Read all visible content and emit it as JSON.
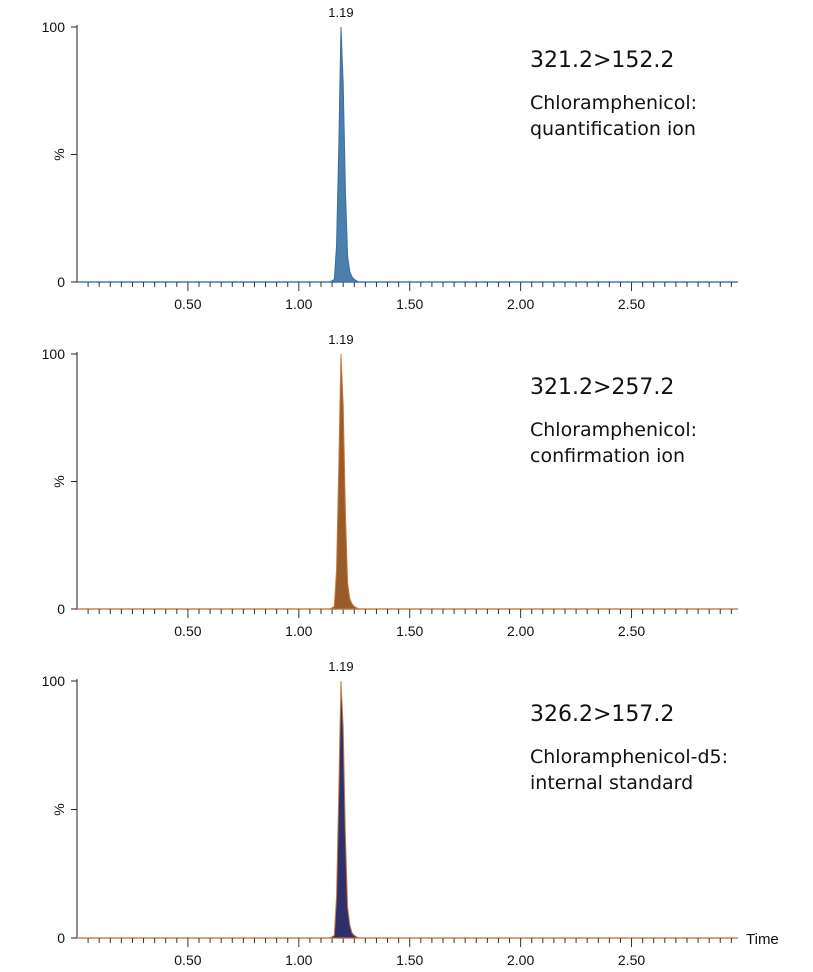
{
  "chart_data": [
    {
      "type": "area",
      "transition": "321.2>152.2",
      "annotation_lines": [
        "Chloramphenicol:",
        "quantification ion"
      ],
      "peak_label": "1.19",
      "ylabel": "%",
      "xlabel": "",
      "xlim": [
        0,
        2.98
      ],
      "ylim": [
        0,
        100
      ],
      "x_ticks": [
        "0.50",
        "1.00",
        "1.50",
        "2.00",
        "2.50"
      ],
      "y_ticks": [
        "0",
        "100"
      ],
      "fill_color": "#4a7fae",
      "line_color": "#3a6e9e",
      "baseline_color": "#4a7fae",
      "series": [
        {
          "x": [
            1.14,
            1.16,
            1.17,
            1.18,
            1.19,
            1.2,
            1.21,
            1.22,
            1.23,
            1.24,
            1.25,
            1.27
          ],
          "y": [
            0,
            1,
            14,
            52,
            100,
            78,
            36,
            10,
            4,
            2,
            1,
            0
          ]
        }
      ]
    },
    {
      "type": "area",
      "transition": "321.2>257.2",
      "annotation_lines": [
        "Chloramphenicol:",
        "confirmation ion"
      ],
      "peak_label": "1.19",
      "ylabel": "%",
      "xlabel": "",
      "xlim": [
        0,
        2.98
      ],
      "ylim": [
        0,
        100
      ],
      "x_ticks": [
        "0.50",
        "1.00",
        "1.50",
        "2.00",
        "2.50"
      ],
      "y_ticks": [
        "0",
        "100"
      ],
      "fill_color": "#9a5a2a",
      "line_color": "#c87a3a",
      "baseline_color": "#d08050",
      "series": [
        {
          "x": [
            1.14,
            1.16,
            1.17,
            1.18,
            1.19,
            1.2,
            1.21,
            1.22,
            1.23,
            1.24,
            1.25,
            1.27
          ],
          "y": [
            0,
            1,
            15,
            55,
            100,
            80,
            38,
            10,
            4,
            2,
            1,
            0
          ]
        }
      ]
    },
    {
      "type": "area",
      "transition": "326.2>157.2",
      "annotation_lines": [
        "Chloramphenicol-d5:",
        "internal standard"
      ],
      "peak_label": "1.19",
      "ylabel": "%",
      "xlabel": "Time",
      "xlim": [
        0,
        2.98
      ],
      "ylim": [
        0,
        100
      ],
      "x_ticks": [
        "0.50",
        "1.00",
        "1.50",
        "2.00",
        "2.50"
      ],
      "y_ticks": [
        "0",
        "100"
      ],
      "fill_color": "#2f2f6e",
      "line_color": "#c87a3a",
      "baseline_color": "#d08050",
      "series": [
        {
          "x": [
            1.14,
            1.16,
            1.17,
            1.18,
            1.19,
            1.2,
            1.21,
            1.22,
            1.23,
            1.24,
            1.25,
            1.27
          ],
          "y": [
            0,
            1,
            16,
            56,
            100,
            82,
            40,
            12,
            5,
            2,
            1,
            0
          ]
        }
      ]
    }
  ]
}
